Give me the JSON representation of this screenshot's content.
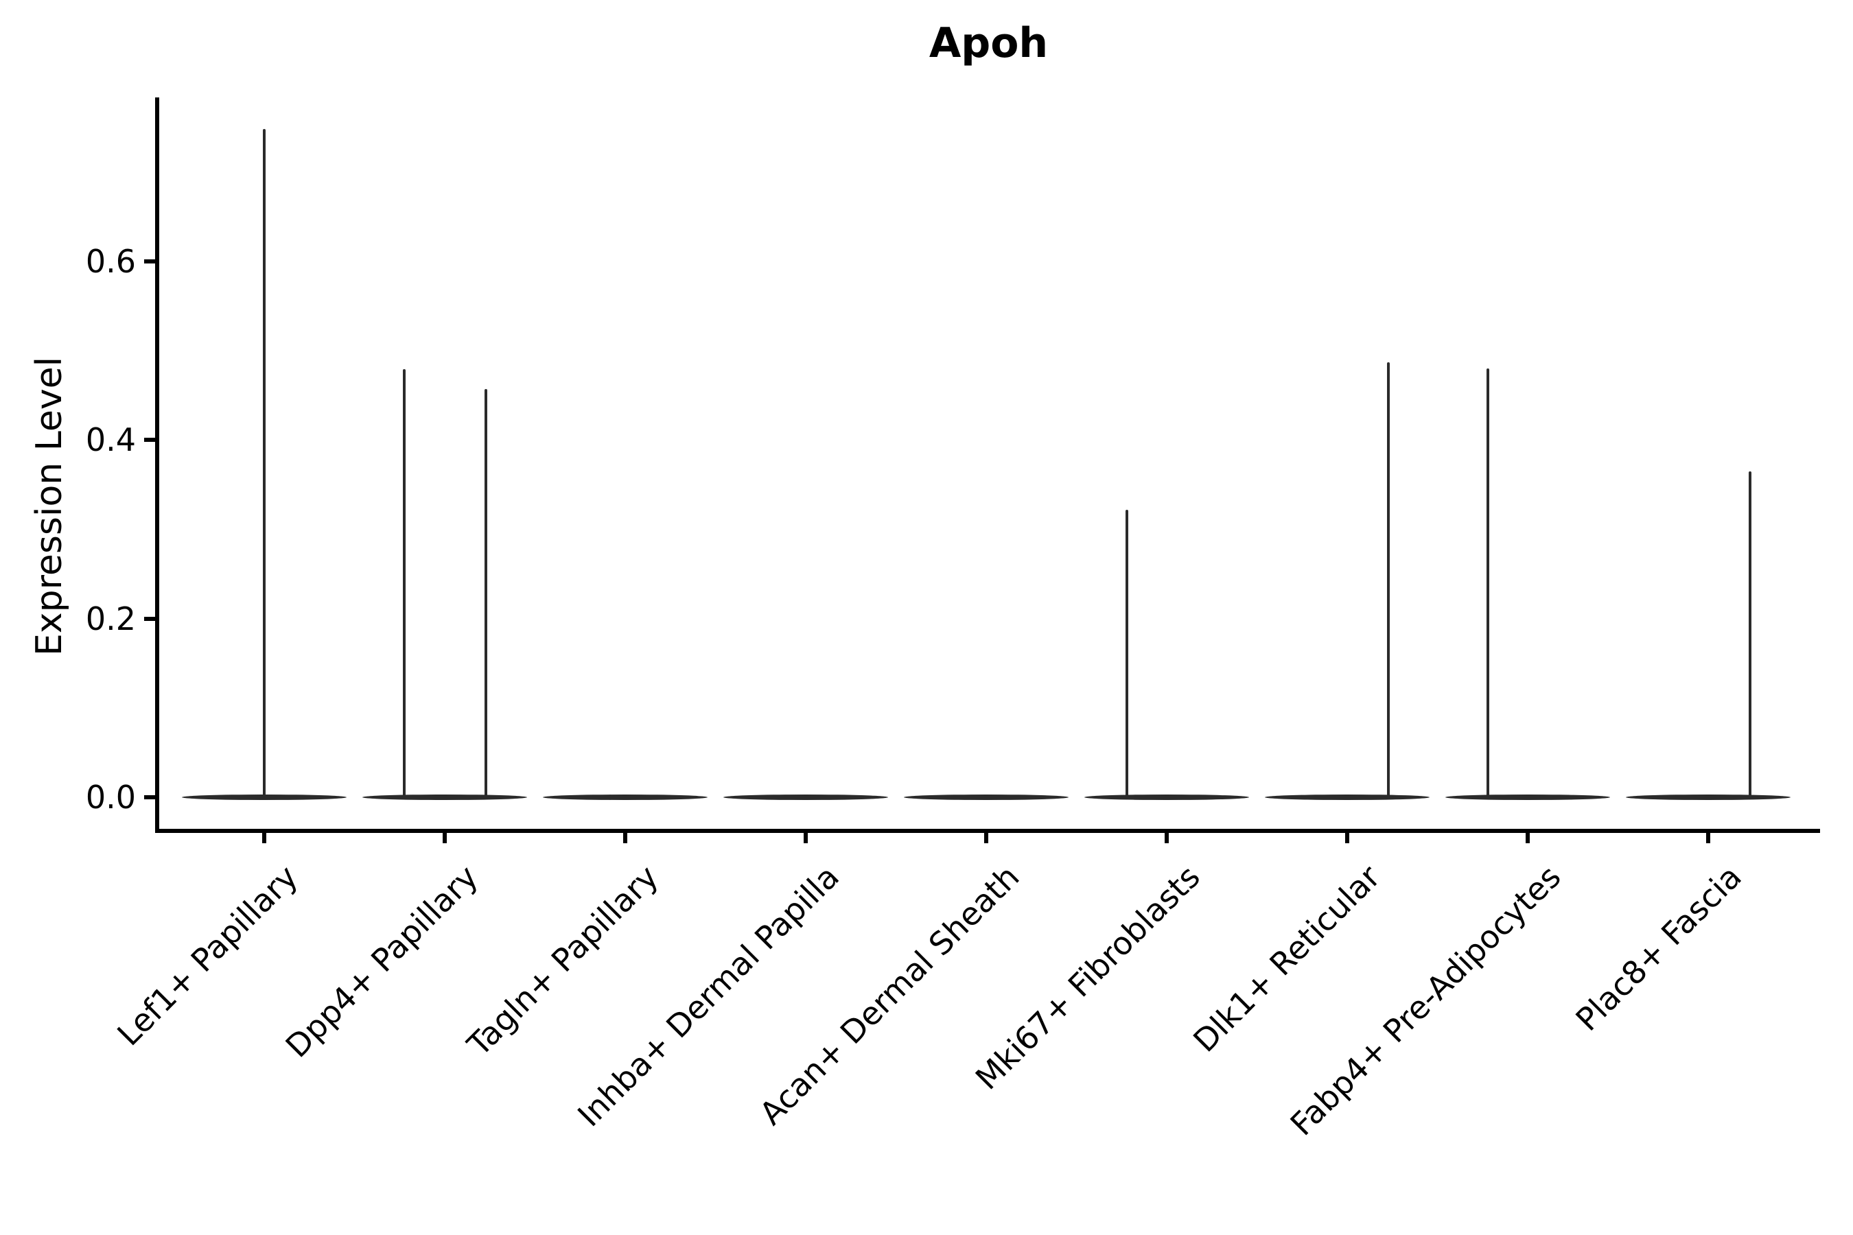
{
  "figure": {
    "background": "#ffffff",
    "violin_color": "#2b2b2b",
    "axis_color": "#000000"
  },
  "chart_data": {
    "type": "violin",
    "title": "Apoh",
    "xlabel": "",
    "ylabel": "Expression Level",
    "yticks": [
      0.0,
      0.2,
      0.4,
      0.6
    ],
    "ytick_labels": [
      "0.0",
      "0.2",
      "0.4",
      "0.6"
    ],
    "ylim": [
      0,
      0.78
    ],
    "grid": false,
    "legend": null,
    "categories": [
      "Lef1+ Papillary",
      "Dpp4+ Papillary",
      "Tagln+ Papillary",
      "Inhba+ Dermal Papilla",
      "Acan+ Dermal Sheath",
      "Mki67+ Fibroblasts",
      "Dlk1+ Reticular",
      "Fabp4+ Pre-Adipocytes",
      "Plac8+ Fascia"
    ],
    "violins": [
      {
        "category": "Lef1+ Papillary",
        "base_value": 0,
        "spikes": [
          {
            "value": 0.748,
            "offset": 0.0
          }
        ]
      },
      {
        "category": "Dpp4+ Papillary",
        "base_value": 0,
        "spikes": [
          {
            "value": 0.479,
            "offset": -0.224
          },
          {
            "value": 0.457,
            "offset": 0.228
          }
        ]
      },
      {
        "category": "Tagln+ Papillary",
        "base_value": 0,
        "spikes": []
      },
      {
        "category": "Inhba+ Dermal Papilla",
        "base_value": 0,
        "spikes": []
      },
      {
        "category": "Acan+ Dermal Sheath",
        "base_value": 0,
        "spikes": []
      },
      {
        "category": "Mki67+ Fibroblasts",
        "base_value": 0,
        "spikes": [
          {
            "value": 0.322,
            "offset": -0.221
          }
        ]
      },
      {
        "category": "Dlk1+ Reticular",
        "base_value": 0,
        "spikes": [
          {
            "value": 0.487,
            "offset": 0.228
          }
        ]
      },
      {
        "category": "Fabp4+ Pre-Adipocytes",
        "base_value": 0,
        "spikes": [
          {
            "value": 0.48,
            "offset": -0.221
          }
        ]
      },
      {
        "category": "Plac8+ Fascia",
        "base_value": 0,
        "spikes": [
          {
            "value": 0.365,
            "offset": 0.232
          }
        ]
      }
    ]
  }
}
